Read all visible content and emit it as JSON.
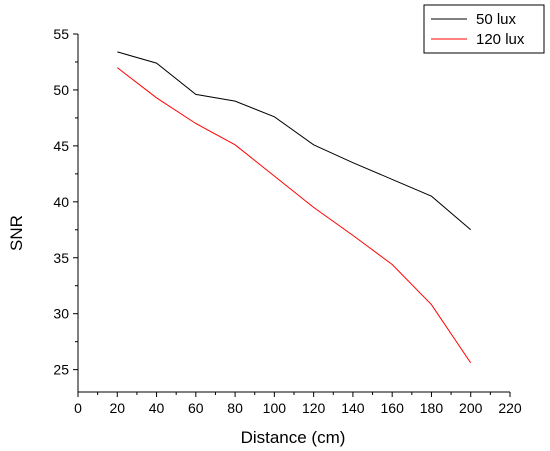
{
  "chart_data": {
    "type": "line",
    "title": "",
    "xlabel": "Distance (cm)",
    "ylabel": "SNR",
    "xlim": [
      0,
      220
    ],
    "ylim": [
      23,
      55
    ],
    "xticks": [
      0,
      20,
      40,
      60,
      80,
      100,
      120,
      140,
      160,
      180,
      200,
      220
    ],
    "yticks": [
      25,
      30,
      35,
      40,
      45,
      50,
      55
    ],
    "x": [
      20,
      40,
      60,
      80,
      100,
      120,
      140,
      160,
      180,
      200
    ],
    "series": [
      {
        "name": "50 lux",
        "color": "#000000",
        "values": [
          53.4,
          52.4,
          49.6,
          49.0,
          47.6,
          45.1,
          43.5,
          42.0,
          40.5,
          37.5
        ]
      },
      {
        "name": "120 lux",
        "color": "#ff0000",
        "values": [
          52.0,
          49.3,
          47.0,
          45.1,
          42.3,
          39.5,
          37.0,
          34.4,
          30.8,
          25.6
        ]
      }
    ],
    "grid": false,
    "legend_position": "top-right"
  }
}
